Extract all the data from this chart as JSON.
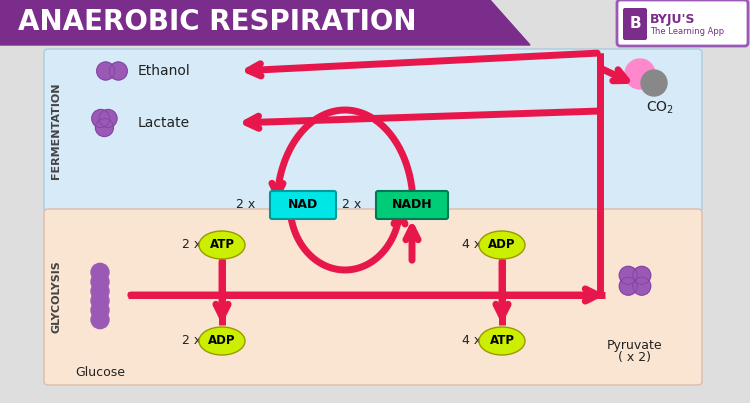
{
  "title": "ANAEROBIC RESPIRATION",
  "title_bg": "#7B2D8B",
  "title_color": "#FFFFFF",
  "bg_color": "#DEDEDE",
  "fermentation_bg": "#D6EAF8",
  "glycolysis_bg": "#FAE5D3",
  "arrow_color": "#E8174B",
  "fermentation_label": "FERMENTATION",
  "glycolysis_label": "GLYCOLYSIS",
  "nad_color": "#00E5E5",
  "nadh_color": "#00CC77",
  "atp_color": "#CCEE00",
  "adp_color": "#CCEE00",
  "molecule_color": "#9B59B6",
  "co2_pink": "#FF88CC",
  "co2_dark": "#666666",
  "label_color": "#222222"
}
